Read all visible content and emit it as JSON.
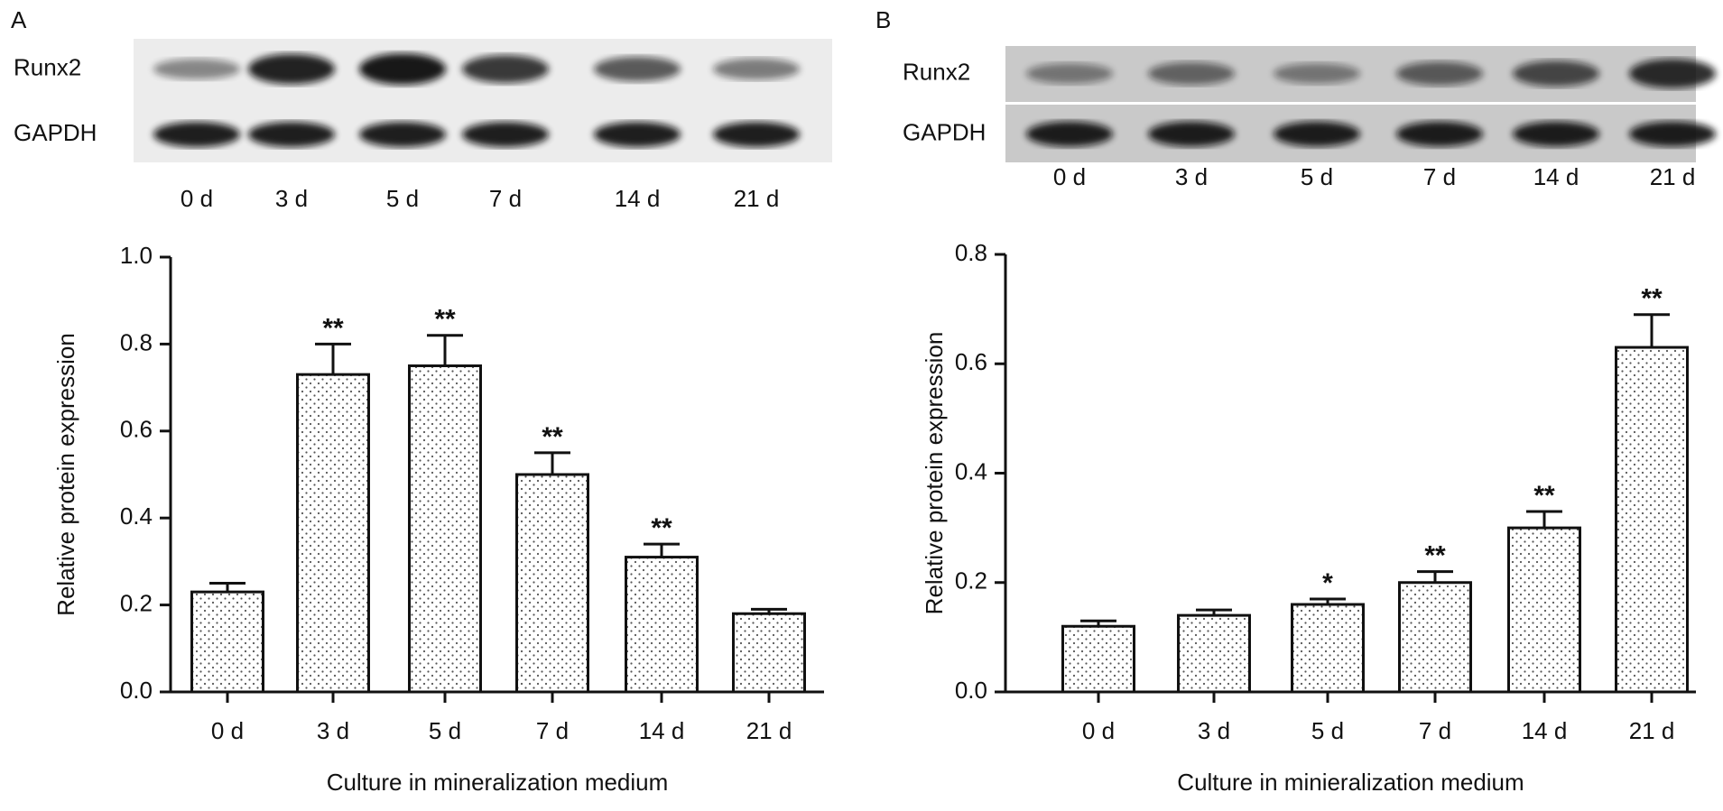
{
  "chart_data": [
    {
      "type": "bar",
      "panel_label": "A",
      "blot_rows": [
        "Runx2",
        "GAPDH"
      ],
      "categories": [
        "0 d",
        "3 d",
        "5 d",
        "7 d",
        "14 d",
        "21 d"
      ],
      "values": [
        0.23,
        0.73,
        0.75,
        0.5,
        0.31,
        0.18
      ],
      "errors": [
        0.02,
        0.07,
        0.07,
        0.05,
        0.03,
        0.01
      ],
      "significance": [
        null,
        "**",
        "**",
        "**",
        "**",
        null
      ],
      "ylabel": "Relative protein expression",
      "xlabel": "Culture in mineralization medium",
      "ylim": [
        0,
        1.0
      ],
      "yticks": [
        {
          "value": 0,
          "label": "0.0"
        },
        0.2,
        0.4,
        0.6,
        0.8,
        {
          "value": 1.0,
          "label": "1.0"
        }
      ],
      "color": "#ffffff"
    },
    {
      "type": "bar",
      "panel_label": "B",
      "blot_rows": [
        "Runx2",
        "GAPDH"
      ],
      "categories": [
        "0 d",
        "3 d",
        "5 d",
        "7 d",
        "14 d",
        "21 d"
      ],
      "values": [
        0.12,
        0.14,
        0.16,
        0.2,
        0.3,
        0.63
      ],
      "errors": [
        0.01,
        0.01,
        0.01,
        0.02,
        0.03,
        0.06
      ],
      "significance": [
        null,
        null,
        "*",
        "**",
        "**",
        "**"
      ],
      "ylabel": "Relative protein expression",
      "xlabel": "Culture in minieralization medium",
      "ylim": [
        0,
        0.8
      ],
      "yticks": [
        {
          "value": 0,
          "label": "0.0"
        },
        0.2,
        0.4,
        0.6,
        0.8
      ],
      "color": "#ffffff"
    }
  ]
}
